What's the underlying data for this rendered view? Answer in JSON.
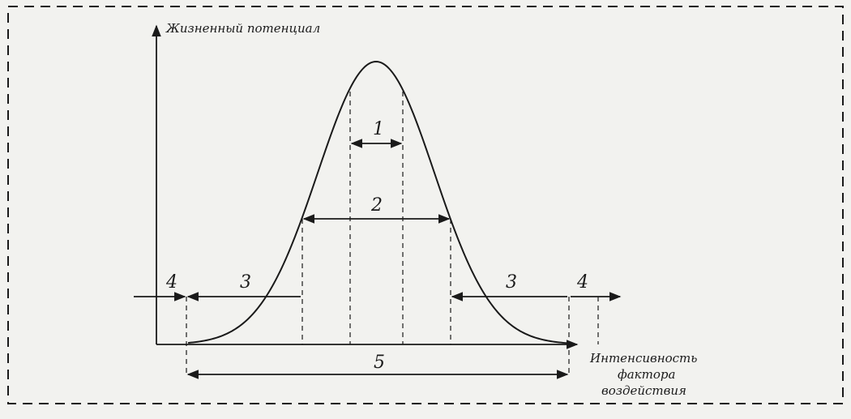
{
  "figure": {
    "y_axis_label": "Жизненный потенциал",
    "x_axis_label_lines": [
      "Интенсивность",
      "фактора",
      "воздействия"
    ],
    "zone_labels": {
      "zone1": "1",
      "zone2": "2",
      "zone3_left": "3",
      "zone3_right": "3",
      "zone4_left": "4",
      "zone4_right": "4",
      "zone5": "5"
    },
    "colors": {
      "ink": "#1a1a1a",
      "paper": "#f2f2ef"
    }
  }
}
